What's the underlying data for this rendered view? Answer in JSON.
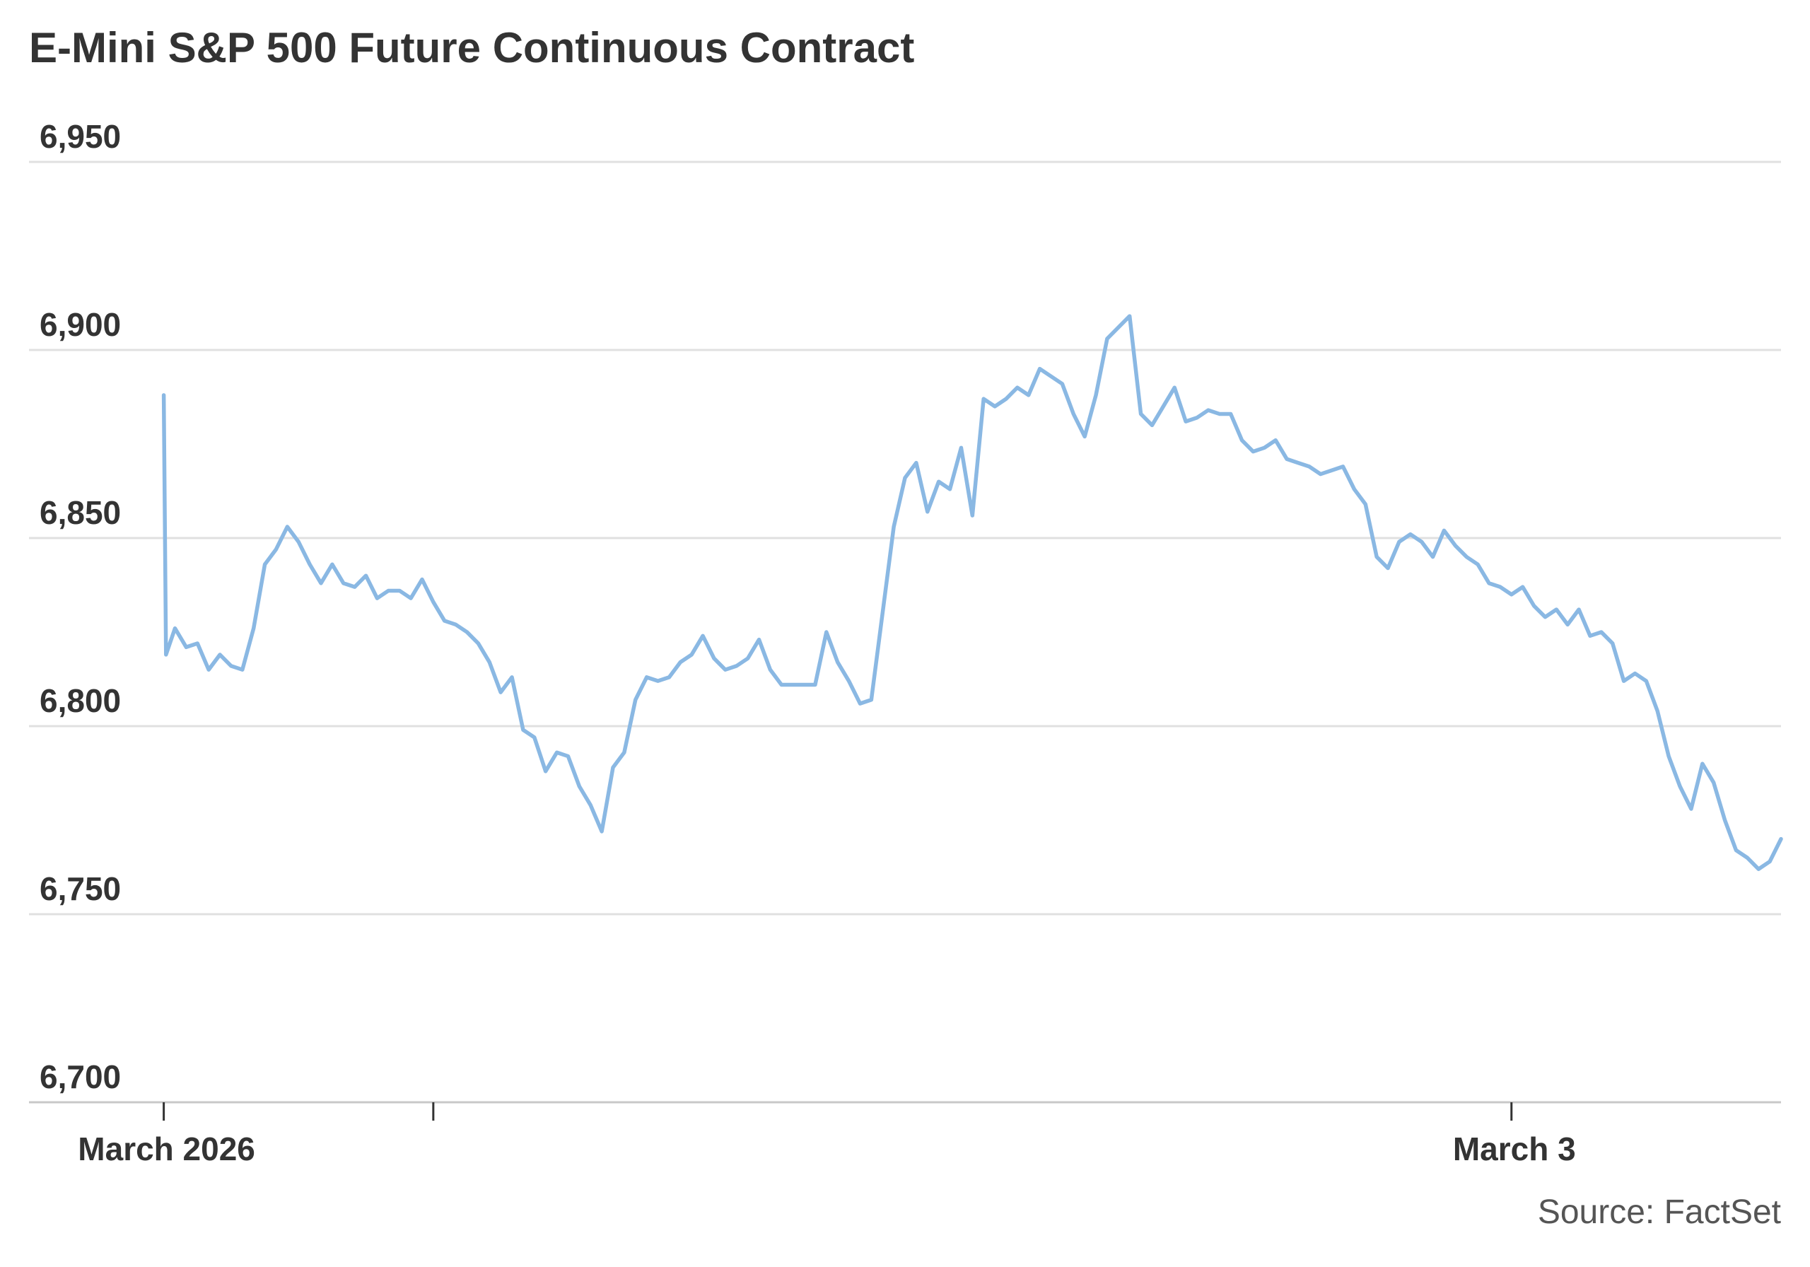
{
  "chart_data": {
    "type": "line",
    "title": "E-Mini S&P 500 Future Continuous Contract",
    "source": "Source: FactSet",
    "color": "#8ab8e3",
    "grid": true,
    "x": [
      0,
      0.05,
      0.25,
      0.5,
      0.75,
      1,
      1.25,
      1.5,
      1.75,
      2,
      2.25,
      2.5,
      2.75,
      3,
      3.25,
      3.5,
      3.75,
      4,
      4.25,
      4.5,
      4.75,
      5,
      5.25,
      5.5,
      5.75,
      6,
      6.25,
      6.5,
      6.75,
      7,
      7.25,
      7.5,
      7.75,
      8,
      8.25,
      8.5,
      8.75,
      9,
      9.25,
      9.5,
      9.75,
      10,
      10.25,
      10.5,
      10.75,
      11,
      11.25,
      11.5,
      11.75,
      12,
      12.25,
      12.5,
      12.75,
      13,
      13.25,
      13.5,
      13.75,
      14,
      14.25,
      14.5,
      14.75,
      15,
      15.25,
      15.5,
      15.75,
      16,
      16.25,
      16.5,
      16.75,
      17,
      17.25,
      17.5,
      17.75,
      18,
      18.25,
      18.5,
      18.75,
      19,
      19.25,
      19.5,
      19.75,
      20,
      20.25,
      20.5,
      20.75,
      21,
      21.25,
      21.5,
      21.75,
      22,
      22.25,
      22.5,
      22.75,
      23,
      23.25,
      23.5,
      23.75,
      24,
      24.25,
      24.5,
      24.75,
      25,
      25.25,
      25.5,
      25.75,
      26,
      26.25,
      26.5,
      26.75,
      27,
      27.25,
      27.5,
      27.75,
      28,
      28.25,
      28.5,
      28.75,
      29,
      29.25,
      29.5,
      29.75,
      30,
      30.25,
      30.5,
      30.75,
      31,
      31.25,
      31.5,
      31.75,
      32,
      32.25,
      32.5,
      32.75,
      33,
      33.25,
      33.5,
      33.75,
      34,
      34.25,
      34.5,
      34.75,
      35,
      35.25,
      35.5,
      35.75,
      36
    ],
    "values": [
      6888,
      6819,
      6826,
      6821,
      6822,
      6815,
      6819,
      6816,
      6815,
      6826,
      6843,
      6847,
      6853,
      6849,
      6843,
      6838,
      6843,
      6838,
      6837,
      6840,
      6834,
      6836,
      6836,
      6834,
      6839,
      6833,
      6828,
      6827,
      6825,
      6822,
      6817,
      6809,
      6813,
      6799,
      6797,
      6788,
      6793,
      6792,
      6784,
      6779,
      6772,
      6789,
      6793,
      6807,
      6813,
      6812,
      6813,
      6817,
      6819,
      6824,
      6818,
      6815,
      6816,
      6818,
      6823,
      6815,
      6811,
      6811,
      6811,
      6811,
      6825,
      6817,
      6812,
      6806,
      6807,
      6830,
      6853,
      6866,
      6870,
      6857,
      6865,
      6863,
      6874,
      6856,
      6887,
      6885,
      6887,
      6890,
      6888,
      6895,
      6893,
      6891,
      6883,
      6877,
      6888,
      6903,
      6906,
      6909,
      6883,
      6880,
      6885,
      6890,
      6881,
      6882,
      6884,
      6883,
      6883,
      6876,
      6873,
      6874,
      6876,
      6871,
      6870,
      6869,
      6867,
      6868,
      6869,
      6863,
      6859,
      6845,
      6842,
      6849,
      6851,
      6849,
      6845,
      6852,
      6848,
      6845,
      6843,
      6838,
      6837,
      6835,
      6837,
      6832,
      6829,
      6831,
      6827,
      6831,
      6824,
      6825,
      6822,
      6812,
      6814,
      6812,
      6804,
      6792,
      6784,
      6778,
      6790,
      6785,
      6775,
      6767,
      6765,
      6762,
      6764,
      6770
    ],
    "xlim": [
      -3,
      36
    ],
    "xticks": [
      {
        "value": 0,
        "label": "March 2026"
      },
      {
        "value": 6,
        "label": null
      },
      {
        "value": 30,
        "label": "March 3"
      }
    ],
    "ylim": [
      6700,
      6950
    ],
    "yticks": [
      {
        "value": 6700,
        "label": "6,700"
      },
      {
        "value": 6750,
        "label": "6,750"
      },
      {
        "value": 6800,
        "label": "6,800"
      },
      {
        "value": 6850,
        "label": "6,850"
      },
      {
        "value": 6900,
        "label": "6,900"
      },
      {
        "value": 6950,
        "label": "6,950"
      }
    ]
  }
}
